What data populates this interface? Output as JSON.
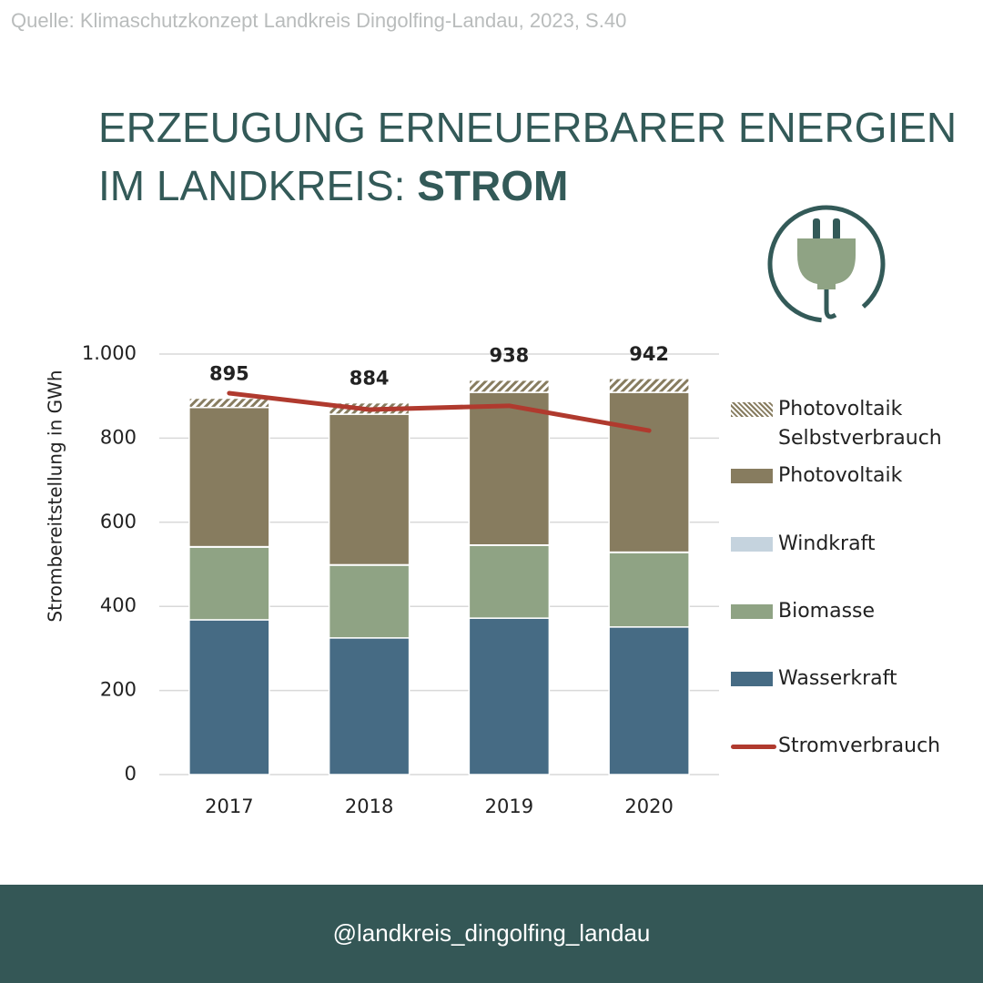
{
  "source": "Quelle: Klimaschutzkonzept Landkreis Dingolfing-Landau, 2023, S.40",
  "handle": "@landkreis_dingolfing_landau",
  "chart_data": {
    "type": "bar",
    "stacked": true,
    "title_line1": "ERZEUGUNG ERNEUERBARER ENERGIEN",
    "title_line2": "IM LANDKREIS:",
    "title_emphasis": "STROM",
    "ylabel": "Strombereitstellung in GWh",
    "categories": [
      "2017",
      "2018",
      "2019",
      "2020"
    ],
    "totals": [
      895,
      884,
      938,
      942
    ],
    "ylim": [
      0,
      1000
    ],
    "yticks": [
      0,
      200,
      400,
      600,
      800,
      {
        "value": 1000,
        "label": "1.000"
      }
    ],
    "grid": true,
    "legend": "right",
    "series": [
      {
        "name": "Photovoltaik Selbstverbrauch",
        "color": "#877c5f",
        "pattern": "hatch",
        "values": [
          22,
          27,
          29,
          33
        ]
      },
      {
        "name": "Photovoltaik",
        "color": "#877c5f",
        "values": [
          331,
          358,
          363,
          380
        ]
      },
      {
        "name": "Windkraft",
        "color": "#c5d3de",
        "values": [
          1,
          1,
          1,
          1
        ]
      },
      {
        "name": "Biomasse",
        "color": "#8fa384",
        "values": [
          173,
          173,
          173,
          177
        ]
      },
      {
        "name": "Wasserkraft",
        "color": "#466b84",
        "values": [
          368,
          325,
          372,
          351
        ]
      },
      {
        "name": "Stromverbrauch",
        "type": "line",
        "color": "#b03a2e",
        "values": [
          907,
          868,
          877,
          818
        ]
      }
    ]
  }
}
